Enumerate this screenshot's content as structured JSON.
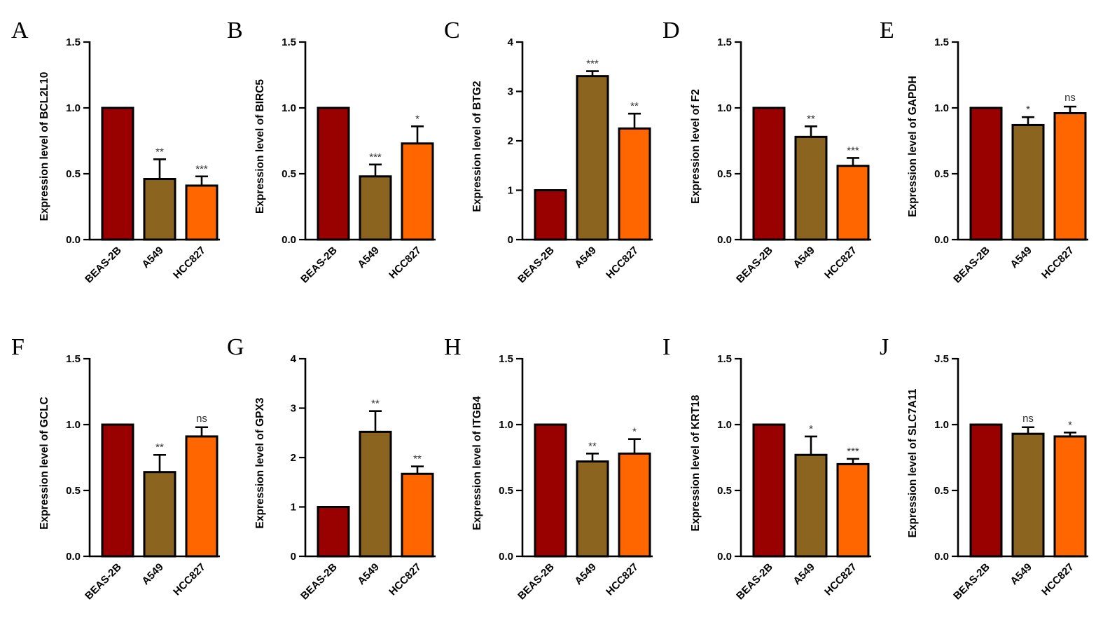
{
  "chart_data": [
    {
      "panel": "A",
      "type": "bar",
      "ylabel": "Expression level of BCL2L10",
      "categories": [
        "BEAS-2B",
        "A549",
        "HCC827"
      ],
      "values": [
        1.0,
        0.46,
        0.41
      ],
      "errors": [
        0,
        0.15,
        0.07
      ],
      "significance": [
        "",
        "**",
        "***"
      ],
      "yticks": [
        "0.0",
        "0.5",
        "1.0",
        "1.5"
      ],
      "ylim": [
        0,
        1.5
      ]
    },
    {
      "panel": "B",
      "type": "bar",
      "ylabel": "Expression level of BIRC5",
      "categories": [
        "BEAS-2B",
        "A549",
        "HCC827"
      ],
      "values": [
        1.0,
        0.48,
        0.73
      ],
      "errors": [
        0,
        0.09,
        0.13
      ],
      "significance": [
        "",
        "***",
        "*"
      ],
      "yticks": [
        "0.0",
        "0.5",
        "1.0",
        "1.5"
      ],
      "ylim": [
        0,
        1.5
      ]
    },
    {
      "panel": "C",
      "type": "bar",
      "ylabel": "Expression level of BTG2",
      "categories": [
        "BEAS-2B",
        "A549",
        "HCC827"
      ],
      "values": [
        1.0,
        3.31,
        2.25
      ],
      "errors": [
        0,
        0.1,
        0.3
      ],
      "significance": [
        "",
        "***",
        "**"
      ],
      "yticks": [
        "0",
        "1",
        "2",
        "3",
        "4"
      ],
      "ylim": [
        0,
        4
      ]
    },
    {
      "panel": "D",
      "type": "bar",
      "ylabel": "Expression level of F2",
      "categories": [
        "BEAS-2B",
        "A549",
        "HCC827"
      ],
      "values": [
        1.0,
        0.78,
        0.56
      ],
      "errors": [
        0,
        0.08,
        0.06
      ],
      "significance": [
        "",
        "**",
        "***"
      ],
      "yticks": [
        "0.0",
        "0.5",
        "1.0",
        "1.5"
      ],
      "ylim": [
        0,
        1.5
      ]
    },
    {
      "panel": "E",
      "type": "bar",
      "ylabel": "Expression level of GAPDH",
      "categories": [
        "BEAS-2B",
        "A549",
        "HCC827"
      ],
      "values": [
        1.0,
        0.87,
        0.96
      ],
      "errors": [
        0,
        0.06,
        0.05
      ],
      "significance": [
        "",
        "*",
        "ns"
      ],
      "yticks": [
        "0.0",
        "0.5",
        "1.0",
        "1.5"
      ],
      "ylim": [
        0,
        1.5
      ]
    },
    {
      "panel": "F",
      "type": "bar",
      "ylabel": "Expression level of GCLC",
      "categories": [
        "BEAS-2B",
        "A549",
        "HCC827"
      ],
      "values": [
        1.0,
        0.64,
        0.91
      ],
      "errors": [
        0,
        0.13,
        0.07
      ],
      "significance": [
        "",
        "**",
        "ns"
      ],
      "yticks": [
        "0.0",
        "0.5",
        "1.0",
        "1.5"
      ],
      "ylim": [
        0,
        1.5
      ]
    },
    {
      "panel": "G",
      "type": "bar",
      "ylabel": "Expression level of GPX3",
      "categories": [
        "BEAS-2B",
        "A549",
        "HCC827"
      ],
      "values": [
        1.0,
        2.52,
        1.67
      ],
      "errors": [
        0,
        0.42,
        0.15
      ],
      "significance": [
        "",
        "**",
        "**"
      ],
      "yticks": [
        "0",
        "1",
        "2",
        "3",
        "4"
      ],
      "ylim": [
        0,
        4
      ]
    },
    {
      "panel": "H",
      "type": "bar",
      "ylabel": "Expression level of ITGB4",
      "categories": [
        "BEAS-2B",
        "A549",
        "HCC827"
      ],
      "values": [
        1.0,
        0.72,
        0.78
      ],
      "errors": [
        0,
        0.06,
        0.11
      ],
      "significance": [
        "",
        "**",
        "*"
      ],
      "yticks": [
        "0.0",
        "0.5",
        "1.0",
        "1.5"
      ],
      "ylim": [
        0,
        1.5
      ]
    },
    {
      "panel": "I",
      "type": "bar",
      "ylabel": "Expression level of KRT18",
      "categories": [
        "BEAS-2B",
        "A549",
        "HCC827"
      ],
      "values": [
        1.0,
        0.77,
        0.7
      ],
      "errors": [
        0,
        0.14,
        0.04
      ],
      "significance": [
        "",
        "*",
        "***"
      ],
      "yticks": [
        "0.0",
        "0.5",
        "1.0",
        "1.5"
      ],
      "ylim": [
        0,
        1.5
      ]
    },
    {
      "panel": "J",
      "type": "bar",
      "ylabel": "Expression level of SLC7A11",
      "categories": [
        "BEAS-2B",
        "A549",
        "HCC827"
      ],
      "values": [
        1.0,
        0.93,
        0.91
      ],
      "errors": [
        0,
        0.05,
        0.03
      ],
      "significance": [
        "",
        "ns",
        "*"
      ],
      "yticks": [
        "0.0",
        "0.5",
        "1.0",
        "J.5"
      ],
      "ylim": [
        0,
        1.5
      ]
    }
  ],
  "colors": {
    "BEAS-2B": "#990000",
    "A549": "#8B6520",
    "HCC827": "#FF6600"
  }
}
